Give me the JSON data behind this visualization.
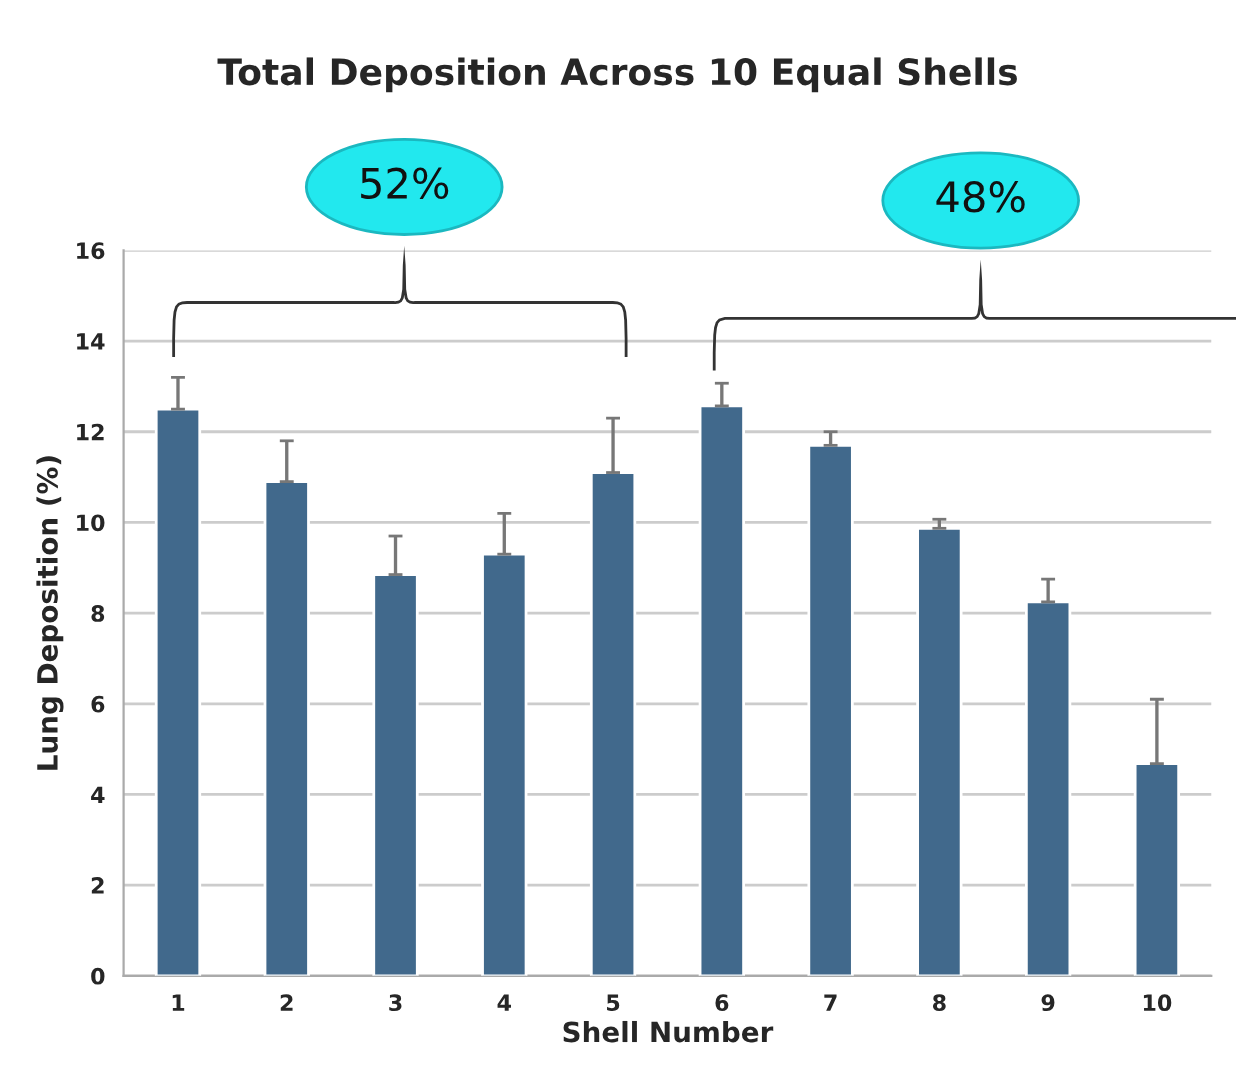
{
  "chart_data": {
    "type": "bar",
    "title": "Total Deposition Across 10 Equal Shells",
    "xlabel": "Shell Number",
    "ylabel": "Lung Deposition (%)",
    "categories": [
      "1",
      "2",
      "3",
      "4",
      "5",
      "6",
      "7",
      "8",
      "9",
      "10"
    ],
    "values": [
      12.5,
      10.9,
      8.85,
      9.3,
      11.1,
      12.57,
      11.7,
      9.87,
      8.25,
      4.68
    ],
    "errors": [
      [
        12.5,
        13.2
      ],
      [
        10.9,
        11.8
      ],
      [
        8.85,
        9.7
      ],
      [
        9.3,
        10.2
      ],
      [
        11.1,
        12.3
      ],
      [
        12.57,
        13.07
      ],
      [
        11.7,
        12.0
      ],
      [
        9.87,
        10.07
      ],
      [
        8.25,
        8.75
      ],
      [
        4.68,
        6.1
      ]
    ],
    "color": "#41698c",
    "ylim": [
      0,
      16
    ],
    "yticks": [
      0,
      2,
      4,
      6,
      8,
      10,
      12,
      14,
      16
    ],
    "grid": "y",
    "annotations": [
      "52%",
      "48%"
    ]
  }
}
